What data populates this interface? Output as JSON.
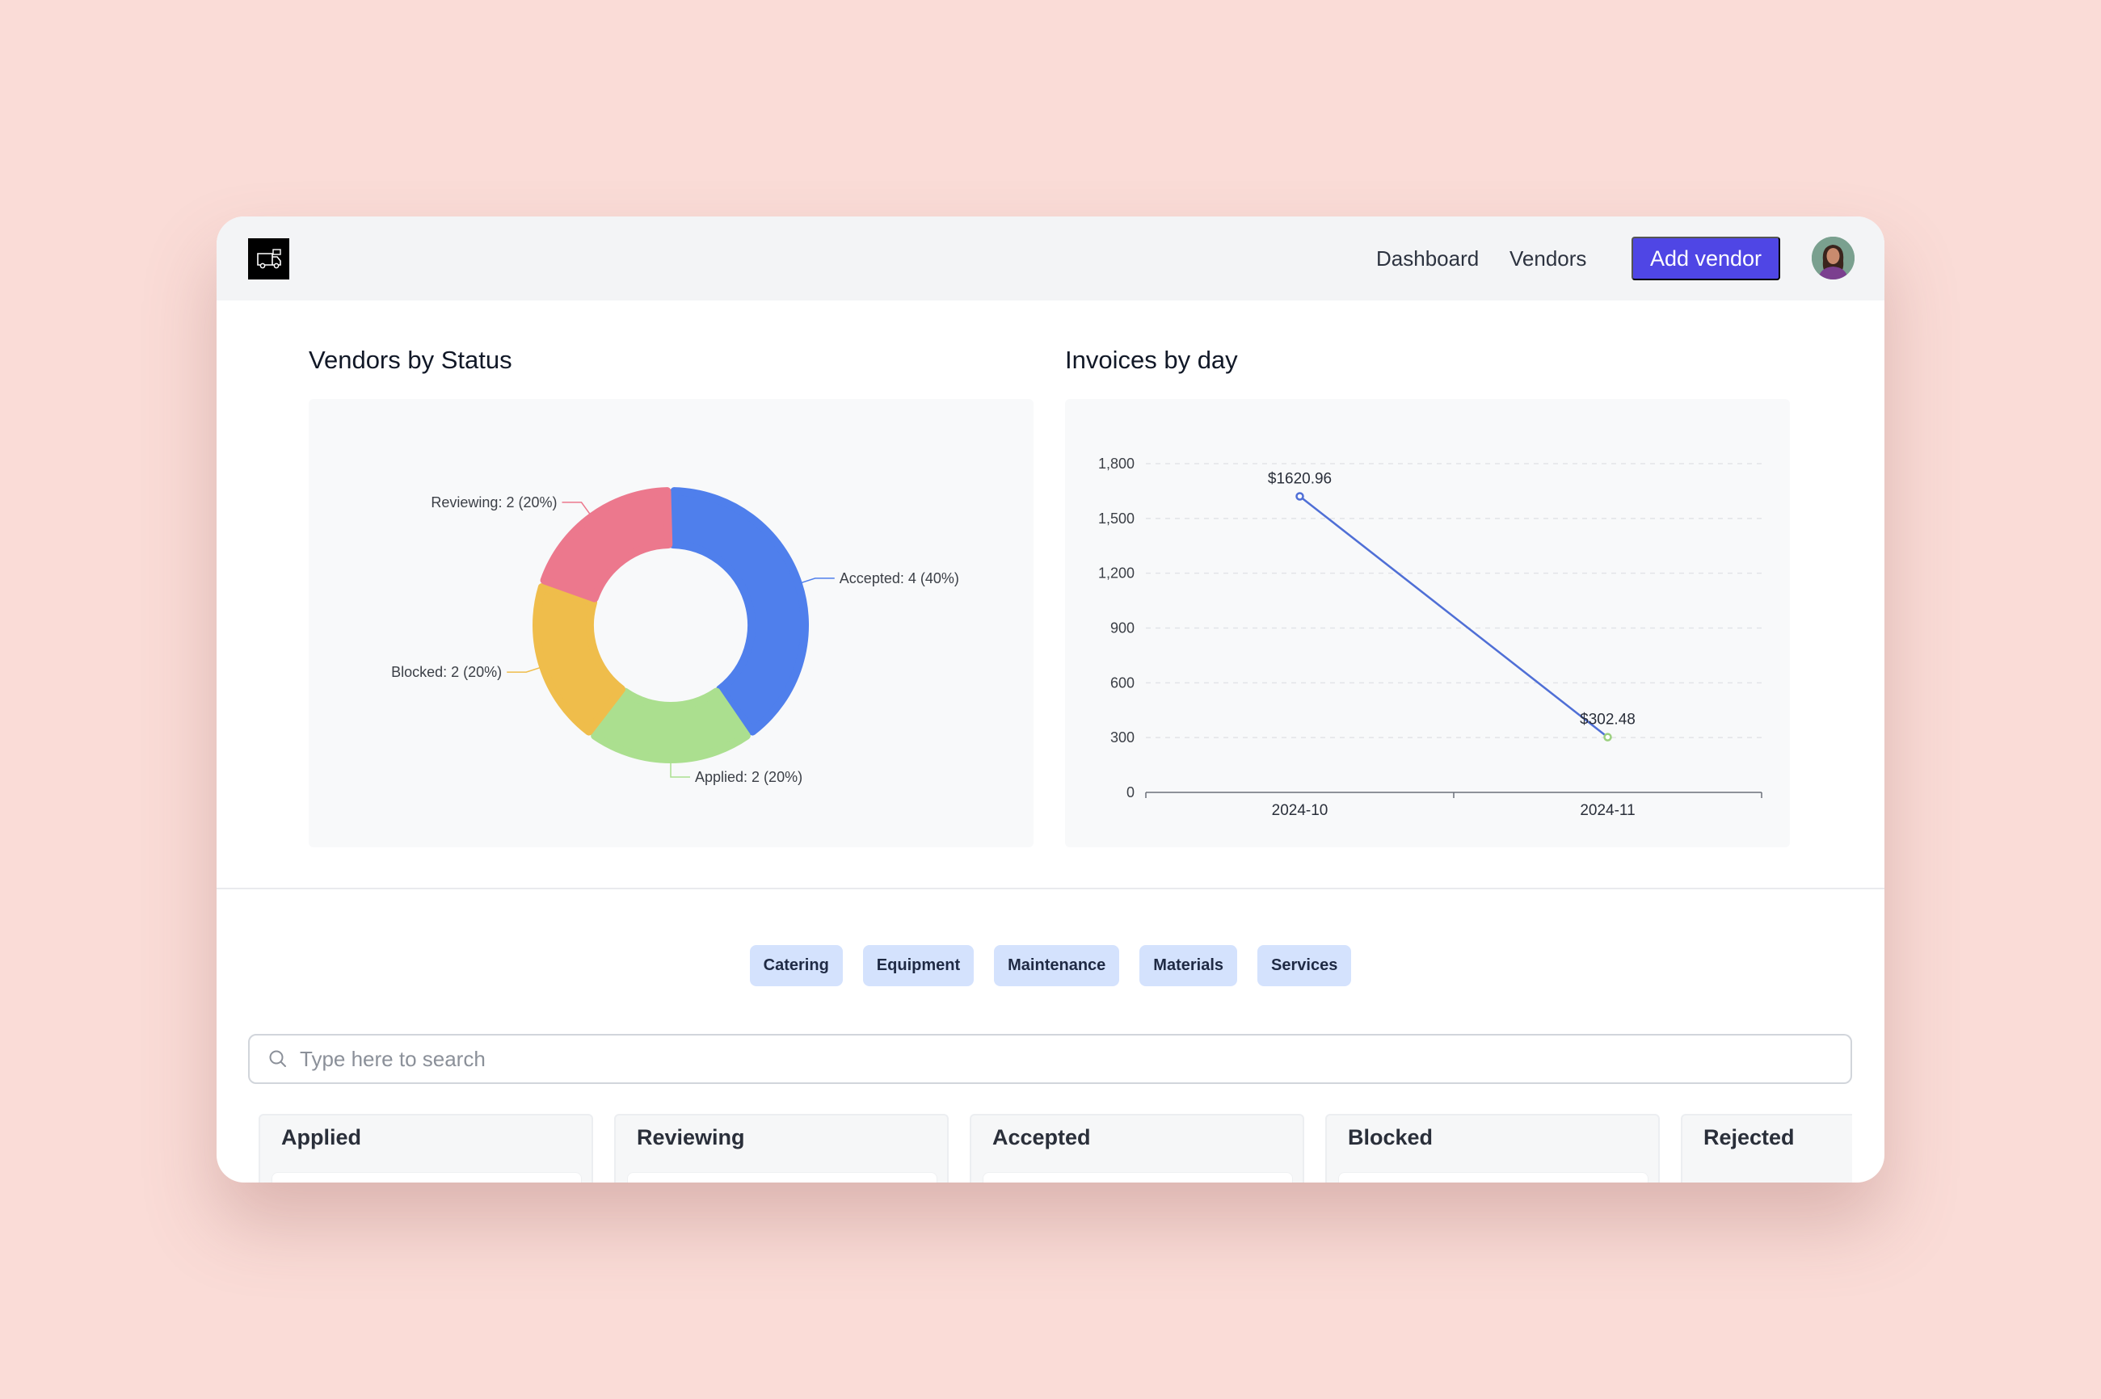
{
  "header": {
    "logo_icon": "truck-icon",
    "nav": [
      {
        "label": "Dashboard"
      },
      {
        "label": "Vendors"
      }
    ],
    "add_vendor_label": "Add vendor",
    "avatar_icon": "user-avatar",
    "accent_color": "#4f46e5"
  },
  "charts_section": {
    "vendors_by_status_title": "Vendors by Status",
    "invoices_by_day_title": "Invoices by day"
  },
  "chart_data": [
    {
      "type": "pie",
      "variant": "donut",
      "slices": [
        {
          "label": "Accepted: 4 (40%)",
          "name": "Accepted",
          "value": 4,
          "percent": 40,
          "color": "#4f7fec"
        },
        {
          "label": "Applied: 2 (20%)",
          "name": "Applied",
          "value": 2,
          "percent": 20,
          "color": "#abdf8f"
        },
        {
          "label": "Blocked: 2 (20%)",
          "name": "Blocked",
          "value": 2,
          "percent": 20,
          "color": "#efbd4b"
        },
        {
          "label": "Reviewing: 2 (20%)",
          "name": "Reviewing",
          "value": 2,
          "percent": 20,
          "color": "#ec788d"
        }
      ]
    },
    {
      "type": "line",
      "x": [
        "2024-10",
        "2024-11"
      ],
      "values": [
        1620.96,
        302.48
      ],
      "data_labels": [
        "$1620.96",
        "$302.48"
      ],
      "point_colors": [
        "#4f6fd6",
        "#9bd07f"
      ],
      "line_color": "#4f6fd6",
      "yticks": [
        "0",
        "300",
        "600",
        "900",
        "1,200",
        "1,500",
        "1,800"
      ],
      "ylim": [
        0,
        1800
      ],
      "grid": true
    }
  ],
  "categories": [
    "Catering",
    "Equipment",
    "Maintenance",
    "Materials",
    "Services"
  ],
  "search": {
    "placeholder": "Type here to search",
    "value": "",
    "icon": "search-icon"
  },
  "board": {
    "columns": [
      {
        "title": "Applied"
      },
      {
        "title": "Reviewing"
      },
      {
        "title": "Accepted"
      },
      {
        "title": "Blocked"
      },
      {
        "title": "Rejected"
      }
    ]
  }
}
